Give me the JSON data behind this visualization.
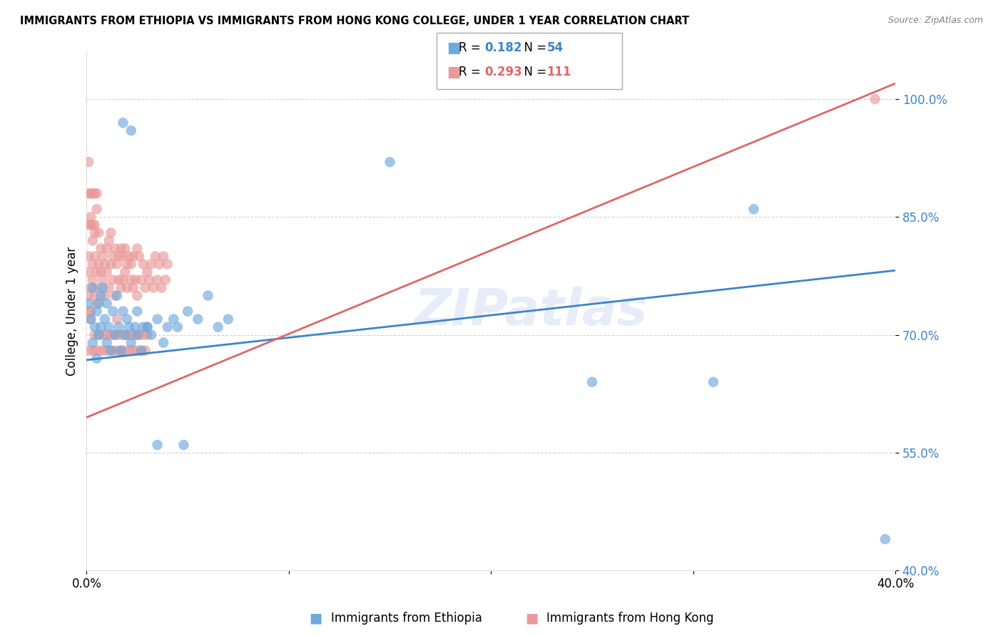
{
  "title": "IMMIGRANTS FROM ETHIOPIA VS IMMIGRANTS FROM HONG KONG COLLEGE, UNDER 1 YEAR CORRELATION CHART",
  "source": "Source: ZipAtlas.com",
  "ylabel": "College, Under 1 year",
  "xlabel_ethiopia": "Immigrants from Ethiopia",
  "xlabel_hongkong": "Immigrants from Hong Kong",
  "xmin": 0.0,
  "xmax": 0.4,
  "ymin": 0.4,
  "ymax": 1.06,
  "yticks": [
    0.4,
    0.55,
    0.7,
    0.85,
    1.0
  ],
  "ytick_labels": [
    "40.0%",
    "55.0%",
    "70.0%",
    "85.0%",
    "100.0%"
  ],
  "xticks": [
    0.0,
    0.1,
    0.2,
    0.3,
    0.4
  ],
  "xtick_labels": [
    "0.0%",
    "",
    "",
    "",
    "40.0%"
  ],
  "ethiopia_R": 0.182,
  "ethiopia_N": 54,
  "hongkong_R": 0.293,
  "hongkong_N": 111,
  "ethiopia_color": "#6fa8dc",
  "hongkong_color": "#ea9999",
  "ethiopia_line_color": "#3d85c8",
  "hongkong_line_color": "#e06666",
  "background_color": "#ffffff",
  "watermark": "ZIPatlas",
  "eth_line_x0": 0.0,
  "eth_line_y0": 0.668,
  "eth_line_x1": 0.4,
  "eth_line_y1": 0.782,
  "hk_line_x0": 0.0,
  "hk_line_y0": 0.595,
  "hk_line_x1": 0.4,
  "hk_line_y1": 1.02,
  "ethiopia_scatter_x": [
    0.001,
    0.002,
    0.003,
    0.003,
    0.004,
    0.005,
    0.005,
    0.006,
    0.006,
    0.007,
    0.007,
    0.008,
    0.009,
    0.01,
    0.01,
    0.011,
    0.012,
    0.013,
    0.014,
    0.015,
    0.016,
    0.017,
    0.018,
    0.019,
    0.02,
    0.021,
    0.022,
    0.024,
    0.025,
    0.027,
    0.028,
    0.03,
    0.032,
    0.035,
    0.038,
    0.04,
    0.043,
    0.045,
    0.048,
    0.05,
    0.055,
    0.06,
    0.065,
    0.07,
    0.018,
    0.022,
    0.025,
    0.03,
    0.035,
    0.15,
    0.25,
    0.31,
    0.33,
    0.395
  ],
  "ethiopia_scatter_y": [
    0.74,
    0.72,
    0.76,
    0.69,
    0.71,
    0.73,
    0.67,
    0.74,
    0.7,
    0.75,
    0.71,
    0.76,
    0.72,
    0.74,
    0.69,
    0.71,
    0.68,
    0.73,
    0.7,
    0.75,
    0.71,
    0.68,
    0.73,
    0.7,
    0.72,
    0.71,
    0.69,
    0.71,
    0.7,
    0.68,
    0.71,
    0.71,
    0.7,
    0.72,
    0.69,
    0.71,
    0.72,
    0.71,
    0.56,
    0.73,
    0.72,
    0.75,
    0.71,
    0.72,
    0.97,
    0.96,
    0.73,
    0.71,
    0.56,
    0.92,
    0.64,
    0.64,
    0.86,
    0.44
  ],
  "hongkong_scatter_x": [
    0.001,
    0.001,
    0.001,
    0.001,
    0.002,
    0.002,
    0.002,
    0.003,
    0.003,
    0.003,
    0.004,
    0.004,
    0.004,
    0.005,
    0.005,
    0.005,
    0.006,
    0.006,
    0.006,
    0.007,
    0.007,
    0.008,
    0.008,
    0.009,
    0.009,
    0.01,
    0.01,
    0.011,
    0.011,
    0.012,
    0.012,
    0.013,
    0.013,
    0.014,
    0.014,
    0.015,
    0.015,
    0.016,
    0.016,
    0.017,
    0.017,
    0.018,
    0.018,
    0.019,
    0.019,
    0.02,
    0.02,
    0.021,
    0.022,
    0.022,
    0.023,
    0.023,
    0.024,
    0.025,
    0.025,
    0.026,
    0.027,
    0.028,
    0.029,
    0.03,
    0.031,
    0.032,
    0.033,
    0.034,
    0.035,
    0.036,
    0.037,
    0.038,
    0.039,
    0.04,
    0.001,
    0.002,
    0.003,
    0.004,
    0.005,
    0.006,
    0.007,
    0.008,
    0.009,
    0.01,
    0.011,
    0.012,
    0.013,
    0.014,
    0.015,
    0.016,
    0.017,
    0.018,
    0.019,
    0.02,
    0.021,
    0.022,
    0.023,
    0.024,
    0.025,
    0.026,
    0.027,
    0.028,
    0.029,
    0.03,
    0.001,
    0.001,
    0.001,
    0.002,
    0.002,
    0.003,
    0.003,
    0.004,
    0.004,
    0.005,
    0.39
  ],
  "hongkong_scatter_y": [
    0.75,
    0.78,
    0.8,
    0.73,
    0.76,
    0.85,
    0.73,
    0.79,
    0.77,
    0.82,
    0.8,
    0.75,
    0.83,
    0.78,
    0.74,
    0.86,
    0.79,
    0.76,
    0.83,
    0.81,
    0.78,
    0.8,
    0.77,
    0.79,
    0.75,
    0.81,
    0.78,
    0.82,
    0.76,
    0.79,
    0.83,
    0.8,
    0.77,
    0.81,
    0.75,
    0.79,
    0.72,
    0.8,
    0.77,
    0.81,
    0.76,
    0.8,
    0.77,
    0.81,
    0.78,
    0.79,
    0.76,
    0.8,
    0.77,
    0.79,
    0.76,
    0.8,
    0.77,
    0.81,
    0.75,
    0.8,
    0.77,
    0.79,
    0.76,
    0.78,
    0.77,
    0.79,
    0.76,
    0.8,
    0.77,
    0.79,
    0.76,
    0.8,
    0.77,
    0.79,
    0.68,
    0.72,
    0.68,
    0.7,
    0.68,
    0.7,
    0.68,
    0.7,
    0.68,
    0.7,
    0.68,
    0.7,
    0.68,
    0.7,
    0.68,
    0.7,
    0.68,
    0.7,
    0.68,
    0.7,
    0.68,
    0.7,
    0.68,
    0.7,
    0.68,
    0.7,
    0.68,
    0.7,
    0.68,
    0.7,
    0.84,
    0.88,
    0.92,
    0.88,
    0.84,
    0.88,
    0.84,
    0.88,
    0.84,
    0.88,
    1.0
  ]
}
